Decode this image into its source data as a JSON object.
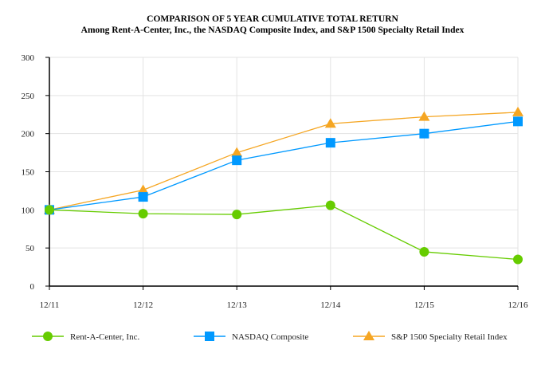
{
  "chart_data": {
    "type": "line",
    "title": "COMPARISON OF 5 YEAR CUMULATIVE TOTAL RETURN",
    "subtitle": "Among Rent-A-Center, Inc., the NASDAQ Composite Index, and S&P 1500 Specialty Retail Index",
    "categories": [
      "12/11",
      "12/12",
      "12/13",
      "12/14",
      "12/15",
      "12/16"
    ],
    "ylim": [
      0,
      300
    ],
    "yticks": [
      0,
      50,
      100,
      150,
      200,
      250,
      300
    ],
    "grid": true,
    "legend": "bottom",
    "series": [
      {
        "name": "Rent-A-Center, Inc.",
        "values": [
          100,
          95,
          94,
          106,
          45,
          35
        ],
        "color": "#66cc00",
        "marker": "circle"
      },
      {
        "name": "NASDAQ Composite",
        "values": [
          100,
          117,
          165,
          188,
          200,
          216
        ],
        "color": "#0099ff",
        "marker": "square"
      },
      {
        "name": "S&P 1500 Specialty Retail Index",
        "values": [
          100,
          126,
          175,
          213,
          222,
          228
        ],
        "color": "#f5a623",
        "marker": "triangle"
      }
    ]
  }
}
